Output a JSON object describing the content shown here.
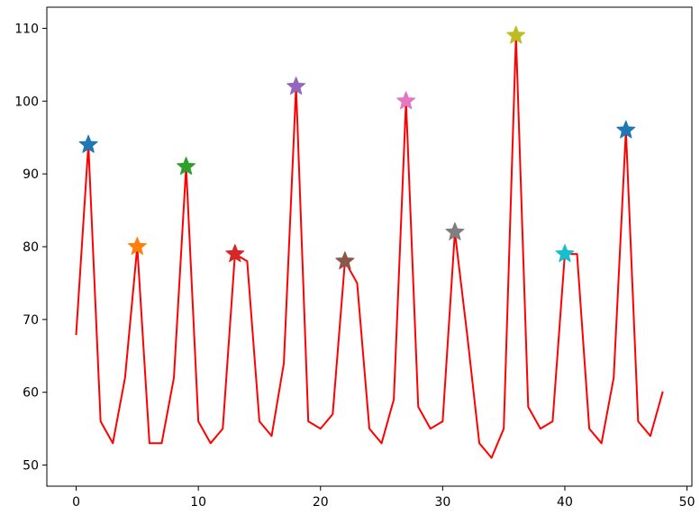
{
  "chart_data": {
    "type": "line",
    "title": "",
    "xlabel": "",
    "ylabel": "",
    "xlim": [
      -2.4,
      50.4
    ],
    "ylim": [
      47.1,
      112.9
    ],
    "x_ticks": [
      0,
      10,
      20,
      30,
      40,
      50
    ],
    "y_ticks": [
      50,
      60,
      70,
      80,
      90,
      100,
      110
    ],
    "x_tick_labels": [
      "0",
      "10",
      "20",
      "30",
      "40",
      "50"
    ],
    "y_tick_labels": [
      "50",
      "60",
      "70",
      "80",
      "90",
      "100",
      "110"
    ],
    "grid": false,
    "legend": "none",
    "series": [
      {
        "color": "#ff0000",
        "x": [
          0,
          1,
          2,
          3,
          4,
          5,
          6,
          7,
          8,
          9,
          10,
          11,
          12,
          13,
          14,
          15,
          16,
          17,
          18,
          19,
          20,
          21,
          22,
          23,
          24,
          25,
          26,
          27,
          28,
          29,
          30,
          31,
          32,
          33,
          34,
          35,
          36,
          37,
          38,
          39,
          40,
          41,
          42,
          43,
          44,
          45,
          46,
          47,
          48
        ],
        "values": [
          68,
          94,
          56,
          53,
          62,
          80,
          53,
          53,
          62,
          91,
          56,
          53,
          55,
          79,
          78,
          56,
          54,
          64,
          102,
          56,
          55,
          57,
          78,
          75,
          55,
          53,
          59,
          100,
          58,
          55,
          56,
          82,
          68,
          53,
          51,
          55,
          109,
          58,
          55,
          56,
          79,
          79,
          55,
          53,
          62,
          96,
          56,
          54,
          60
        ]
      }
    ],
    "peaks": [
      {
        "x": 1,
        "y": 94,
        "color": "#1f77b4"
      },
      {
        "x": 5,
        "y": 80,
        "color": "#ff7f0e"
      },
      {
        "x": 9,
        "y": 91,
        "color": "#2ca02c"
      },
      {
        "x": 13,
        "y": 79,
        "color": "#d62728"
      },
      {
        "x": 18,
        "y": 102,
        "color": "#9467bd"
      },
      {
        "x": 22,
        "y": 78,
        "color": "#8c564b"
      },
      {
        "x": 27,
        "y": 100,
        "color": "#e377c2"
      },
      {
        "x": 31,
        "y": 82,
        "color": "#7f7f7f"
      },
      {
        "x": 36,
        "y": 109,
        "color": "#bcbd22"
      },
      {
        "x": 40,
        "y": 79,
        "color": "#17becf"
      },
      {
        "x": 45,
        "y": 96,
        "color": "#1f77b4"
      }
    ]
  }
}
